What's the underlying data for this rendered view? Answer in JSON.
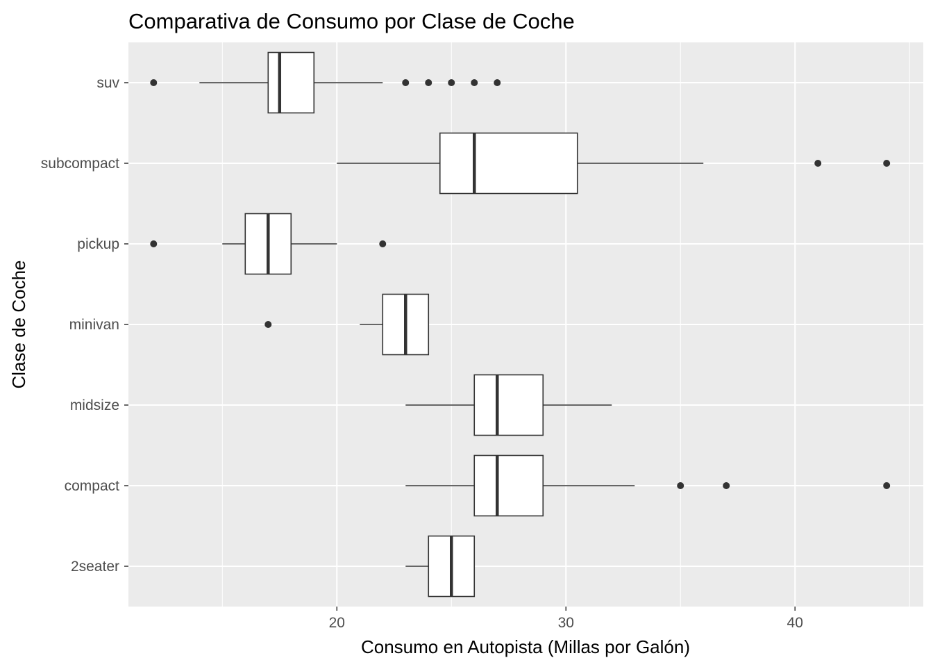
{
  "chart_data": {
    "type": "boxplot",
    "orientation": "horizontal",
    "title": "Comparativa de Consumo por Clase de Coche",
    "xlabel": "Consumo en Autopista (Millas por Galón)",
    "ylabel": "Clase de Coche",
    "xlim": [
      10.9,
      45.6
    ],
    "x_ticks": [
      20,
      30,
      40
    ],
    "x_tick_labels": [
      "20",
      "30",
      "40"
    ],
    "grid": true,
    "categories": [
      "2seater",
      "compact",
      "midsize",
      "minivan",
      "pickup",
      "subcompact",
      "suv"
    ],
    "boxes": [
      {
        "category": "2seater",
        "whisker_low": 23,
        "q1": 24,
        "median": 25,
        "q3": 26,
        "whisker_high": 26,
        "outliers": []
      },
      {
        "category": "compact",
        "whisker_low": 23,
        "q1": 26,
        "median": 27,
        "q3": 29,
        "whisker_high": 33,
        "outliers": [
          35,
          37,
          44
        ]
      },
      {
        "category": "midsize",
        "whisker_low": 23,
        "q1": 26,
        "median": 27,
        "q3": 29,
        "whisker_high": 32,
        "outliers": []
      },
      {
        "category": "minivan",
        "whisker_low": 21,
        "q1": 22,
        "median": 23,
        "q3": 24,
        "whisker_high": 24,
        "outliers": [
          17
        ]
      },
      {
        "category": "pickup",
        "whisker_low": 15,
        "q1": 16,
        "median": 17,
        "q3": 18,
        "whisker_high": 20,
        "outliers": [
          12,
          22
        ]
      },
      {
        "category": "subcompact",
        "whisker_low": 20,
        "q1": 24.5,
        "median": 26,
        "q3": 30.5,
        "whisker_high": 36,
        "outliers": [
          41,
          44
        ]
      },
      {
        "category": "suv",
        "whisker_low": 14,
        "q1": 17,
        "median": 17.5,
        "q3": 19,
        "whisker_high": 22,
        "outliers": [
          12,
          23,
          24,
          25,
          26,
          27
        ]
      }
    ]
  }
}
